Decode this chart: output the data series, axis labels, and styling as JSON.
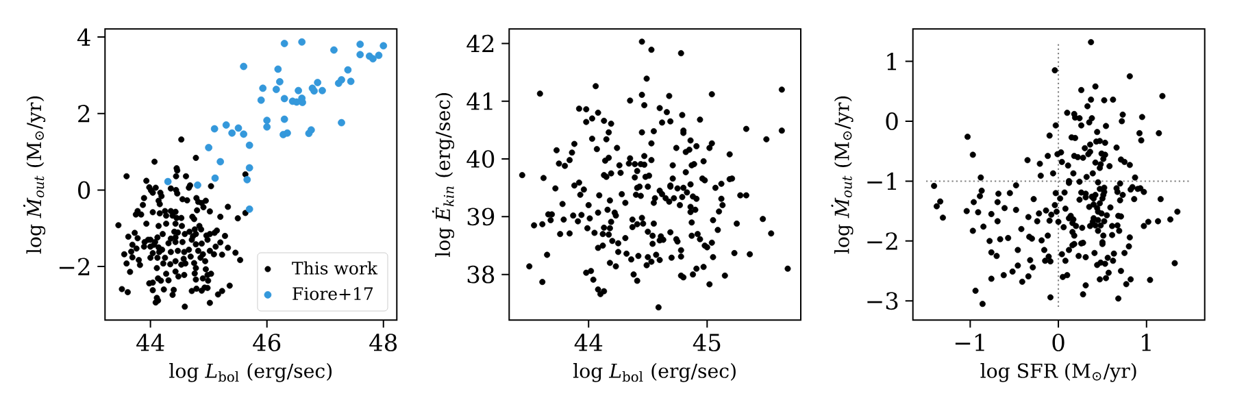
{
  "chart_data": [
    {
      "type": "scatter",
      "xlabel": "log *L*$_{bol}$ (erg/sec)",
      "ylabel": "log *Ṁ$_{out}$* (M$_{⊙}$/yr)",
      "xlim": [
        43.22,
        48.23
      ],
      "ylim": [
        -3.4,
        4.21
      ],
      "xticks": [
        44,
        46,
        48
      ],
      "yticks": [
        {
          "value": -2,
          "label": "−2"
        },
        0,
        2,
        4
      ],
      "legend": "bottom right",
      "marker": "circle",
      "series": [
        {
          "name": "This work",
          "color": "#000000",
          "x": [
            44.53,
            44.07,
            44.78,
            44.45,
            44.46,
            43.59,
            43.93,
            44.44,
            44.61,
            45.63,
            45.04,
            44.68,
            44.66,
            43.98,
            44.09,
            44.35,
            44.01,
            44.04,
            44.44,
            44.46,
            44.17,
            44.19,
            43.89,
            44.14,
            44.16,
            44.55,
            44.63,
            44.79,
            44.82,
            44.95,
            44.88,
            44.91,
            43.87,
            43.78,
            43.75,
            43.84,
            44.04,
            44.16,
            44.25,
            44.35,
            44.43,
            44.27,
            44.38,
            44.53,
            44.45,
            44.72,
            44.75,
            44.8,
            45.02,
            45.33,
            45.2,
            45.5,
            45.63,
            43.93,
            43.45,
            44.14,
            44.27,
            44.43,
            44.54,
            44.76,
            44.84,
            44.87,
            44.67,
            44.41,
            44.47,
            43.73,
            43.62,
            43.78,
            43.96,
            44.12,
            44.21,
            44.35,
            44.43,
            44.59,
            44.73,
            44.78,
            44.96,
            45.02,
            45.14,
            45.1,
            45.28,
            43.9,
            44.0,
            44.08,
            43.69,
            43.89,
            44.0,
            44.06,
            44.14,
            44.31,
            44.43,
            44.55,
            44.71,
            44.78,
            44.88,
            44.98,
            45.2,
            45.33,
            45.46,
            45.12,
            45.02,
            45.09,
            45.23,
            43.55,
            43.67,
            43.76,
            44.04,
            44.15,
            44.2,
            44.35,
            44.47,
            44.58,
            44.66,
            44.82,
            44.9,
            43.8,
            43.69,
            43.59,
            44.0,
            44.12,
            44.25,
            44.43,
            44.57,
            44.69,
            44.86,
            44.94,
            45.54,
            43.65,
            43.82,
            44.11,
            44.22,
            44.34,
            44.43,
            44.53,
            44.6,
            44.75,
            44.78,
            44.95,
            44.98,
            45.04,
            44.27,
            44.13,
            44.18,
            44.31,
            44.48,
            44.58,
            44.76,
            44.78,
            44.9,
            44.99,
            43.98,
            44.04,
            43.51,
            43.61,
            44.04,
            44.23,
            44.4,
            44.38,
            44.71,
            44.79,
            44.88,
            44.93,
            44.98,
            45.23,
            45.16,
            45.36,
            44.11,
            44.13,
            44.09,
            44.59,
            45.02
          ],
          "values": [
            1.32,
            0.74,
            0.84,
            0.57,
            0.51,
            0.36,
            0.24,
            0.36,
            0.36,
            0.41,
            0.1,
            0.12,
            0.06,
            0.07,
            0.06,
            0.04,
            -0.01,
            -0.07,
            0.0,
            -0.09,
            -0.07,
            -0.16,
            -0.21,
            -0.28,
            -0.37,
            -0.24,
            -0.27,
            -0.21,
            -0.31,
            -0.28,
            -0.34,
            -0.45,
            -0.39,
            -0.55,
            -0.64,
            -0.64,
            -0.58,
            -0.61,
            -0.55,
            -0.55,
            -0.57,
            -0.67,
            -0.67,
            -0.73,
            -0.73,
            -0.7,
            -0.76,
            -0.53,
            -0.56,
            -0.44,
            -0.7,
            -0.74,
            -0.6,
            -0.88,
            -0.92,
            -0.94,
            -0.88,
            -0.88,
            -0.94,
            -1.03,
            -0.94,
            -1.03,
            -1.09,
            -1.09,
            -1.11,
            -1.12,
            -1.22,
            -1.26,
            -1.3,
            -1.24,
            -1.15,
            -1.27,
            -1.24,
            -1.15,
            -1.21,
            -1.15,
            -1.19,
            -1.15,
            -1.06,
            -1.12,
            -1.2,
            -1.36,
            -1.3,
            -1.36,
            -1.43,
            -1.48,
            -1.48,
            -1.43,
            -1.5,
            -1.39,
            -1.36,
            -1.36,
            -1.3,
            -1.42,
            -1.4,
            -1.3,
            -1.37,
            -1.51,
            -1.64,
            -1.48,
            -1.59,
            -1.68,
            -1.69,
            -1.68,
            -1.61,
            -1.53,
            -1.65,
            -1.62,
            -1.56,
            -1.62,
            -1.59,
            -1.62,
            -1.56,
            -1.59,
            -1.68,
            -1.83,
            -1.76,
            -1.92,
            -1.77,
            -1.77,
            -1.77,
            -1.86,
            -1.8,
            -1.74,
            -1.77,
            -1.86,
            -1.83,
            -2.14,
            -1.96,
            -2.04,
            -1.92,
            -1.94,
            -2.13,
            -1.95,
            -1.92,
            -1.91,
            -2.04,
            -2.07,
            -2.22,
            -2.19,
            -2.19,
            -2.31,
            -2.37,
            -2.36,
            -2.26,
            -2.22,
            -2.18,
            -2.34,
            -2.31,
            -2.37,
            -2.44,
            -2.42,
            -2.59,
            -2.67,
            -2.62,
            -2.6,
            -2.61,
            -2.74,
            -2.64,
            -2.58,
            -2.63,
            -2.55,
            -2.56,
            -2.64,
            -2.73,
            -2.5,
            -2.82,
            -2.89,
            -2.94,
            -3.05,
            -2.95
          ]
        },
        {
          "name": "Fiore+17",
          "color": "#3498db",
          "x": [
            46.3,
            46.6,
            47.6,
            48.0,
            47.15,
            47.6,
            47.76,
            47.82,
            47.92,
            45.6,
            46.19,
            47.39,
            46.22,
            46.87,
            47.28,
            47.23,
            47.44,
            45.93,
            46.16,
            46.54,
            46.78,
            46.81,
            46.95,
            45.9,
            46.3,
            46.44,
            46.51,
            46.6,
            46.61,
            46.0,
            46.3,
            47.28,
            46.0,
            45.1,
            45.3,
            45.51,
            45.4,
            45.6,
            46.28,
            46.35,
            46.72,
            46.76,
            45.7,
            45.0,
            45.2,
            45.7,
            44.3,
            45.11,
            45.66,
            44.81,
            45.7
          ],
          "values": [
            3.83,
            3.87,
            3.81,
            3.77,
            3.66,
            3.54,
            3.5,
            3.43,
            3.52,
            3.23,
            3.16,
            3.14,
            2.83,
            2.81,
            2.88,
            2.79,
            2.84,
            2.66,
            2.63,
            2.6,
            2.66,
            2.59,
            2.6,
            2.35,
            2.39,
            2.32,
            2.3,
            2.4,
            2.29,
            1.82,
            1.85,
            1.76,
            1.65,
            1.6,
            1.7,
            1.62,
            1.49,
            1.46,
            1.45,
            1.49,
            1.48,
            1.57,
            1.17,
            1.11,
            0.74,
            0.58,
            0.22,
            0.31,
            0.27,
            0.13,
            -0.5
          ]
        }
      ]
    },
    {
      "type": "scatter",
      "xlabel": "log *L*$_{bol}$ (erg/sec)",
      "ylabel": "log *Ė$_{kin}$* (erg/sec)",
      "xlim": [
        43.33,
        45.79
      ],
      "ylim": [
        37.21,
        42.25
      ],
      "xticks": [
        44,
        45
      ],
      "yticks": [
        38,
        39,
        40,
        41,
        42
      ],
      "marker": "circle",
      "series": [
        {
          "color": "#000000",
          "x": [
            43.59,
            43.44,
            43.62,
            43.73,
            43.75,
            43.8,
            43.72,
            43.78,
            43.66,
            43.69,
            43.68,
            43.79,
            43.54,
            43.61,
            43.76,
            43.65,
            43.5,
            43.61,
            44.45,
            44.53,
            44.78,
            44.49,
            44.06,
            44.45,
            44.68,
            45.04,
            45.63,
            44.35,
            44.47,
            43.92,
            43.98,
            44.08,
            44.03,
            43.98,
            44.13,
            44.19,
            44.6,
            44.66,
            44.79,
            44.94,
            44.62,
            44.69,
            44.17,
            44.45,
            44.55,
            44.8,
            44.8,
            45.33,
            45.63,
            45.5,
            44.03,
            44.15,
            43.88,
            44.07,
            44.24,
            44.53,
            44.86,
            44.91,
            44.74,
            44.82,
            44.85,
            45.02,
            45.04,
            45.19,
            43.86,
            43.84,
            44.14,
            44.17,
            44.26,
            44.35,
            44.34,
            44.39,
            44.47,
            44.44,
            44.47,
            44.53,
            44.41,
            44.71,
            44.87,
            44.89,
            44.97,
            44.82,
            44.13,
            44.15,
            44.19,
            44.27,
            44.39,
            44.48,
            44.51,
            44.71,
            44.96,
            44.98,
            45.12,
            45.19,
            45.21,
            43.88,
            43.92,
            43.96,
            43.93,
            44.09,
            44.28,
            44.41,
            44.43,
            44.5,
            44.4,
            44.44,
            44.6,
            44.62,
            44.69,
            44.69,
            44.75,
            44.8,
            44.83,
            44.86,
            44.56,
            44.65,
            44.68,
            44.72,
            44.79,
            44.88,
            44.91,
            45.07,
            45.12,
            45.28,
            45.33,
            44.0,
            44.18,
            44.31,
            44.55,
            44.77,
            44.86,
            44.9,
            45.13,
            44.86,
            45.1,
            43.87,
            43.94,
            44.08,
            44.16,
            44.22,
            44.23,
            44.01,
            43.91,
            44.37,
            44.45,
            44.46,
            44.41,
            44.55,
            44.19,
            44.18,
            44.37,
            44.87,
            45.05,
            45.25,
            45.47,
            43.99,
            43.84,
            44.05,
            44.13,
            44.12,
            44.17,
            44.5,
            44.54,
            44.61,
            44.6,
            44.63,
            44.69,
            44.74,
            44.75,
            44.87,
            44.92,
            44.94,
            45.09,
            45.54,
            44.2,
            44.25,
            44.31,
            44.08,
            44.12,
            44.54,
            44.98,
            45.0,
            45.04,
            44.25,
            44.32,
            44.36,
            44.42,
            44.5,
            44.53,
            44.49,
            44.57,
            44.6,
            44.7,
            44.78,
            44.78,
            45.05,
            45.23,
            45.36,
            44.18,
            44.23,
            43.98,
            44.02,
            44.04,
            44.38,
            44.41,
            44.78,
            44.8,
            44.88,
            44.91,
            44.97,
            45.02,
            45.15,
            45.68,
            44.08,
            44.13,
            44.1,
            44.59
          ],
          "values": [
            41.13,
            39.72,
            39.67,
            40.15,
            39.92,
            39.88,
            39.49,
            39.22,
            39.04,
            39.04,
            38.94,
            38.95,
            38.85,
            38.87,
            38.7,
            38.34,
            38.14,
            37.87,
            42.03,
            41.89,
            41.83,
            41.39,
            41.26,
            41.11,
            41.09,
            41.12,
            41.2,
            41.01,
            40.93,
            40.87,
            40.86,
            40.8,
            40.7,
            40.64,
            40.66,
            40.61,
            40.88,
            40.81,
            40.76,
            40.68,
            40.63,
            40.65,
            40.46,
            40.46,
            40.48,
            40.49,
            40.45,
            40.52,
            40.49,
            40.34,
            40.35,
            40.34,
            40.26,
            40.17,
            40.19,
            40.27,
            40.32,
            40.22,
            40.19,
            40.12,
            40.16,
            40.19,
            40.27,
            40.08,
            40.11,
            39.98,
            39.97,
            40.02,
            39.89,
            40.01,
            39.92,
            39.91,
            40.05,
            39.91,
            39.9,
            39.98,
            39.79,
            39.89,
            39.89,
            39.91,
            39.96,
            39.77,
            39.72,
            39.69,
            39.75,
            39.76,
            39.68,
            39.69,
            39.71,
            39.66,
            39.66,
            39.63,
            39.57,
            39.65,
            39.66,
            39.54,
            39.59,
            39.47,
            39.38,
            39.37,
            39.39,
            39.5,
            39.52,
            39.52,
            39.38,
            39.36,
            39.45,
            39.39,
            39.54,
            39.52,
            39.49,
            39.5,
            39.42,
            39.56,
            39.32,
            39.32,
            39.26,
            39.32,
            39.34,
            39.35,
            39.31,
            39.5,
            39.31,
            39.37,
            39.37,
            39.2,
            39.28,
            39.24,
            39.24,
            39.2,
            39.17,
            39.12,
            39.2,
            39.08,
            39.09,
            39.02,
            39.03,
            39.07,
            39.12,
            39.07,
            39.02,
            38.97,
            38.92,
            38.95,
            38.98,
            38.88,
            38.87,
            38.88,
            38.91,
            38.8,
            38.82,
            38.9,
            38.94,
            38.88,
            38.96,
            38.8,
            38.71,
            38.72,
            38.81,
            38.7,
            38.69,
            38.74,
            38.67,
            38.66,
            38.59,
            38.6,
            38.73,
            38.61,
            38.57,
            38.67,
            38.7,
            38.61,
            38.77,
            38.71,
            38.58,
            38.54,
            38.63,
            38.46,
            38.5,
            38.53,
            38.5,
            38.47,
            38.55,
            38.39,
            38.36,
            38.26,
            38.32,
            38.3,
            38.22,
            38.16,
            38.34,
            38.25,
            38.29,
            38.42,
            38.31,
            38.3,
            38.37,
            38.35,
            38.2,
            38.14,
            38.03,
            38.06,
            37.91,
            38.0,
            37.89,
            37.98,
            37.95,
            38.0,
            38.1,
            38.13,
            37.83,
            37.98,
            38.1,
            37.74,
            37.71,
            37.66,
            37.43
          ]
        }
      ]
    },
    {
      "type": "scatter",
      "xlabel": "log SFR (M$_{⊙}$/yr)",
      "ylabel": "log *Ṁ$_{out}$* (M$_{⊙}$/yr)",
      "xlim": [
        -1.65,
        1.66
      ],
      "ylim": [
        -3.32,
        1.54
      ],
      "xticks": [
        {
          "value": -1,
          "label": "−1"
        },
        0,
        1
      ],
      "yticks": [
        {
          "value": -3,
          "label": "−3"
        },
        {
          "value": -2,
          "label": "−2"
        },
        {
          "value": -1,
          "label": "−1"
        },
        0,
        1
      ],
      "marker": "circle",
      "series": [
        {
          "type": "line",
          "color": "#808080",
          "line_style": "dotted",
          "marker": "none",
          "x": [
            0,
            0
          ],
          "values": [
            -3.1,
            1.3
          ]
        },
        {
          "type": "line",
          "color": "#808080",
          "line_style": "dotted",
          "marker": "none",
          "x": [
            -1.5,
            1.5
          ],
          "values": [
            -1,
            -1
          ]
        },
        {
          "color": "#000000",
          "x": [
            0.37,
            -0.04,
            0.81,
            0.26,
            0.42,
            0.37,
            0.52,
            0.62,
            1.18,
            0.33,
            0.1,
            0.18,
            0.19,
            0.24,
            0.38,
            0.35,
            0.26,
            -0.03,
            0.54,
            0.73,
            0.72,
            0.95,
            -1.03,
            -0.1,
            0.15,
            0.19,
            0.44,
            0.92,
            0.94,
            1.14,
            0.43,
            0.47,
            0.53,
            0.36,
            0.3,
            0.66,
            -0.97,
            -0.01,
            0.03,
            -0.12,
            0.18,
            0.22,
            0.28,
            0.34,
            0.36,
            0.49,
            0.53,
            0.51,
            0.42,
            0.48,
            0.47,
            0.58,
            0.71,
            0.75,
            0.81,
            -0.35,
            -0.21,
            0.04,
            0.11,
            0.17,
            0.39,
            -0.06,
            -0.2,
            -0.88,
            0.32,
            0.87,
            0.12,
            0.12,
            0.24,
            0.45,
            0.7,
            -1.41,
            -0.48,
            -0.87,
            -0.89,
            -1.34,
            -1.38,
            -1.31,
            -0.96,
            -1.04,
            -0.91,
            -0.68,
            -0.69,
            -0.55,
            -0.61,
            -0.48,
            -0.28,
            -0.76,
            -0.69,
            -0.85,
            -0.97,
            -0.42,
            -0.34,
            -0.24,
            -0.22,
            -0.14,
            -0.08,
            -0.1,
            -0.04,
            -0.02,
            -0.03,
            0.02,
            0.07,
            0.0,
            0.08,
            0.06,
            0.12,
            0.14,
            0.17,
            0.16,
            0.2,
            0.27,
            0.26,
            0.31,
            0.24,
            0.31,
            0.38,
            0.42,
            0.4,
            0.47,
            0.52,
            0.52,
            0.51,
            0.5,
            0.47,
            0.35,
            0.4,
            0.44,
            0.45,
            0.49,
            0.55,
            0.59,
            0.66,
            0.67,
            0.73,
            0.7,
            0.68,
            0.71,
            0.82,
            0.84,
            0.9,
            0.93,
            0.97,
            0.86,
            1.16,
            1.35,
            1.27,
            1.13,
            1.02,
            0.97,
            0.4,
            0.39,
            0.36,
            0.42,
            0.45,
            0.48,
            0.52,
            0.61,
            0.67,
            0.45,
            0.51,
            0.61,
            0.69,
            0.81,
            0.16,
            0.18,
            0.16,
            0.18,
            0.12,
            0.26,
            0.28,
            0.5,
            0.5,
            0.8,
            0.75,
            0.63,
            0.62,
            0.56,
            0.53,
            0.48,
            0.44,
            0.41,
            0.23,
            0.31,
            0.04,
            0.08,
            -0.16,
            -0.11,
            -0.15,
            -0.09,
            -0.19,
            -0.12,
            -0.33,
            -0.3,
            -0.57,
            -0.66,
            -0.78,
            -0.46,
            -0.76,
            -0.7,
            -0.32,
            -0.29,
            -0.46,
            -0.52,
            -0.62,
            -0.76,
            -0.34,
            -0.41,
            0.05,
            0.1,
            0.57,
            0.71,
            0.54,
            0.47,
            0.82,
            0.77,
            1.04,
            1.32,
            0.31,
            0.28,
            0.68,
            -0.09,
            -0.94,
            -0.86
          ],
          "values": [
            1.32,
            0.85,
            0.75,
            0.52,
            0.58,
            0.36,
            0.35,
            0.36,
            0.42,
            0.25,
            0.14,
            0.12,
            0.06,
            0.05,
            0.05,
            -0.02,
            -0.07,
            -0.07,
            -0.08,
            0.11,
            0.0,
            0.07,
            -0.26,
            -0.24,
            -0.27,
            -0.28,
            -0.18,
            -0.2,
            -0.32,
            -0.2,
            -0.34,
            -0.33,
            -0.36,
            -0.39,
            -0.45,
            -0.44,
            -0.56,
            -0.55,
            -0.52,
            -0.58,
            -0.58,
            -0.6,
            -0.61,
            -0.55,
            -0.51,
            -0.54,
            -0.56,
            -0.63,
            -0.69,
            -0.72,
            -0.78,
            -0.75,
            -0.64,
            -0.68,
            -0.73,
            -0.65,
            -0.71,
            -0.68,
            -0.74,
            -0.87,
            -0.87,
            -0.87,
            -0.91,
            -0.94,
            -0.93,
            -0.94,
            -1.0,
            -1.03,
            -1.01,
            -1.02,
            -1.04,
            -1.08,
            -1.07,
            -1.16,
            -1.25,
            -1.34,
            -1.42,
            -1.61,
            -1.35,
            -1.5,
            -1.52,
            -1.21,
            -1.35,
            -1.2,
            -1.45,
            -1.48,
            -1.3,
            -1.55,
            -1.67,
            -1.76,
            -1.83,
            -1.8,
            -1.6,
            -1.67,
            -1.54,
            -1.49,
            -1.56,
            -1.66,
            -1.4,
            -1.51,
            -1.2,
            -1.29,
            -1.19,
            -1.68,
            -1.46,
            -1.77,
            -1.62,
            -1.58,
            -1.64,
            -1.7,
            -1.75,
            -1.78,
            -1.19,
            -1.21,
            -1.31,
            -1.27,
            -1.26,
            -1.23,
            -1.29,
            -1.13,
            -1.11,
            -1.18,
            -1.23,
            -1.29,
            -1.37,
            -1.43,
            -1.39,
            -1.45,
            -1.51,
            -1.54,
            -1.57,
            -1.44,
            -1.12,
            -1.18,
            -1.23,
            -1.32,
            -1.58,
            -1.59,
            -1.14,
            -1.1,
            -1.13,
            -1.12,
            -1.18,
            -1.3,
            -1.3,
            -1.51,
            -1.64,
            -1.67,
            -1.68,
            -1.75,
            -1.62,
            -1.68,
            -1.75,
            -1.74,
            -1.65,
            -1.74,
            -1.67,
            -1.75,
            -1.74,
            -1.83,
            -1.91,
            -1.9,
            -1.83,
            -1.94,
            -1.85,
            -1.91,
            -2.07,
            -2.05,
            -2.15,
            -2.04,
            -2.03,
            -2.02,
            -2.05,
            -2.09,
            -2.2,
            -2.21,
            -2.33,
            -2.28,
            -2.38,
            -2.36,
            -2.4,
            -2.2,
            -2.25,
            -2.27,
            -2.22,
            -2.33,
            -2.15,
            -2.26,
            -2.33,
            -2.34,
            -1.99,
            -1.91,
            -1.93,
            -1.96,
            -1.95,
            -1.97,
            -2.0,
            -2.15,
            -2.19,
            -2.25,
            -2.32,
            -2.44,
            -2.41,
            -2.51,
            -2.57,
            -2.63,
            -2.59,
            -2.68,
            -2.6,
            -2.57,
            -2.53,
            -2.5,
            -2.62,
            -2.64,
            -2.64,
            -2.72,
            -2.65,
            -2.37,
            -2.74,
            -2.89,
            -2.96,
            -2.94,
            -2.83,
            -3.05
          ]
        }
      ]
    }
  ]
}
